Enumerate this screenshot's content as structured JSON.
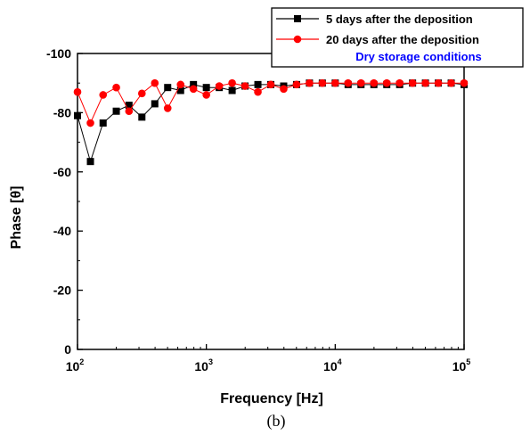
{
  "chart_data": {
    "type": "line",
    "xscale": "log",
    "xlabel": "Frequency [Hz]",
    "ylabel": "Phase [θ]",
    "xlim": [
      100,
      100000
    ],
    "ylim": [
      -100,
      0
    ],
    "y_inverted": true,
    "xticks": [
      {
        "base": "10",
        "exp": "2",
        "value": 100
      },
      {
        "base": "10",
        "exp": "3",
        "value": 1000
      },
      {
        "base": "10",
        "exp": "4",
        "value": 10000
      },
      {
        "base": "10",
        "exp": "5",
        "value": 100000
      }
    ],
    "yticks": [
      {
        "label": "-100",
        "value": -100
      },
      {
        "label": "-80",
        "value": -80
      },
      {
        "label": "-60",
        "value": -60
      },
      {
        "label": "-40",
        "value": -40
      },
      {
        "label": "-20",
        "value": -20
      },
      {
        "label": "0",
        "value": 0
      }
    ],
    "x": [
      100,
      126,
      158,
      200,
      251,
      316,
      398,
      501,
      631,
      794,
      1000,
      1259,
      1585,
      1995,
      2512,
      3162,
      3981,
      5012,
      6310,
      7943,
      10000,
      12589,
      15849,
      19953,
      25119,
      31623,
      39811,
      50119,
      63096,
      79433,
      100000
    ],
    "series": [
      {
        "name": "5 days after the deposition",
        "color": "#000000",
        "marker": "square",
        "values": [
          -79,
          -63.5,
          -76.5,
          -80.5,
          -82.5,
          -78.5,
          -83,
          -88.5,
          -87.5,
          -89.5,
          -88.5,
          -88.5,
          -87.5,
          -89,
          -89.5,
          -89.5,
          -89,
          -89.5,
          -90,
          -90,
          -90,
          -89.5,
          -89.5,
          -89.5,
          -89.5,
          -89.5,
          -90,
          -90,
          -90,
          -90,
          -89.5
        ]
      },
      {
        "name": "20 days after the deposition",
        "color": "#ff0000",
        "marker": "circle",
        "values": [
          -87,
          -76.5,
          -86,
          -88.5,
          -80.5,
          -86.5,
          -90,
          -81.5,
          -89.5,
          -88,
          -86,
          -89,
          -90,
          -89,
          -87,
          -89.5,
          -88,
          -89.5,
          -90,
          -90,
          -90,
          -90,
          -90,
          -90,
          -90,
          -90,
          -90,
          -90,
          -90,
          -90,
          -90
        ]
      }
    ],
    "legend": {
      "position": "top-right",
      "note": "Dry storage conditions",
      "note_color": "#0000ff"
    },
    "caption": "(b)"
  }
}
